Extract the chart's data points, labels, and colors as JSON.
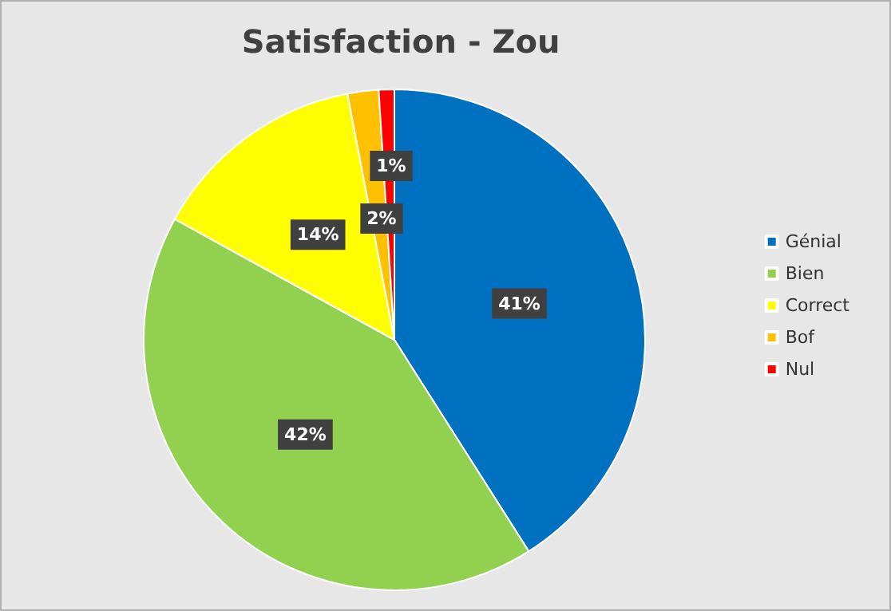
{
  "chart_data": {
    "type": "pie",
    "title": "Satisfaction - Zou",
    "categories": [
      "Génial",
      "Bien",
      "Correct",
      "Bof",
      "Nul"
    ],
    "values": [
      41,
      42,
      14,
      2,
      1
    ],
    "colors": [
      "#0070c0",
      "#92d050",
      "#ffff00",
      "#ffc000",
      "#ff0000"
    ],
    "value_labels": [
      "41%",
      "42%",
      "14%",
      "2%",
      "1%"
    ],
    "legend": "right"
  }
}
